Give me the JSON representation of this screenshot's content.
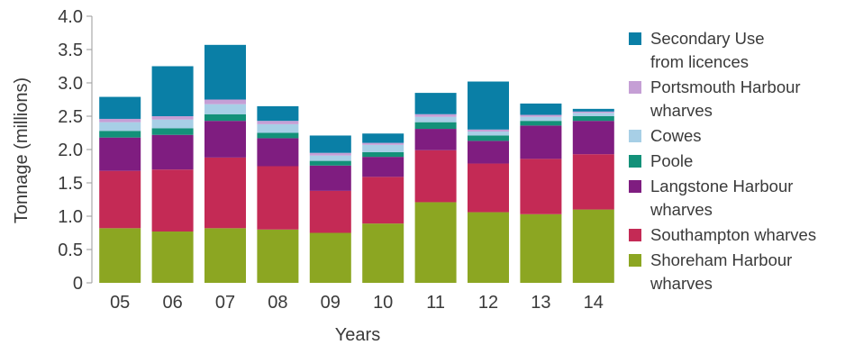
{
  "chart_data": {
    "type": "bar",
    "stacked": true,
    "categories": [
      "05",
      "06",
      "07",
      "08",
      "09",
      "10",
      "11",
      "12",
      "13",
      "14"
    ],
    "xlabel": "Years",
    "ylabel": "Tonnage (millions)",
    "ylim": [
      0,
      4.0
    ],
    "yticks": [
      "0",
      "0.5",
      "1.0",
      "1.5",
      "2.0",
      "2.5",
      "3.0",
      "3.5",
      "4.0"
    ],
    "legend_position": "right",
    "series": [
      {
        "name": "Shoreham Harbour\nwharves",
        "color": "#8ca622",
        "values": [
          0.82,
          0.77,
          0.82,
          0.8,
          0.75,
          0.89,
          1.21,
          1.06,
          1.03,
          1.1
        ]
      },
      {
        "name": "Southampton wharves",
        "color": "#c42a55",
        "values": [
          0.86,
          0.93,
          1.06,
          0.95,
          0.63,
          0.7,
          0.78,
          0.73,
          0.83,
          0.83
        ]
      },
      {
        "name": "Langstone Harbour\nwharves",
        "color": "#7f1d80",
        "values": [
          0.5,
          0.52,
          0.55,
          0.42,
          0.38,
          0.3,
          0.32,
          0.34,
          0.5,
          0.5
        ]
      },
      {
        "name": "Poole",
        "color": "#139179",
        "values": [
          0.1,
          0.1,
          0.1,
          0.08,
          0.07,
          0.07,
          0.1,
          0.08,
          0.07,
          0.07
        ]
      },
      {
        "name": "Cowes",
        "color": "#a7cfe6",
        "values": [
          0.13,
          0.13,
          0.15,
          0.13,
          0.08,
          0.11,
          0.08,
          0.06,
          0.06,
          0.05
        ]
      },
      {
        "name": "Portsmouth Harbour\nwharves",
        "color": "#c59fd5",
        "values": [
          0.05,
          0.05,
          0.07,
          0.05,
          0.04,
          0.03,
          0.04,
          0.03,
          0.03,
          0.02
        ]
      },
      {
        "name": "Secondary Use\nfrom licences",
        "color": "#0a7fa6",
        "values": [
          0.33,
          0.75,
          0.82,
          0.22,
          0.26,
          0.14,
          0.32,
          0.72,
          0.17,
          0.04
        ]
      }
    ]
  }
}
